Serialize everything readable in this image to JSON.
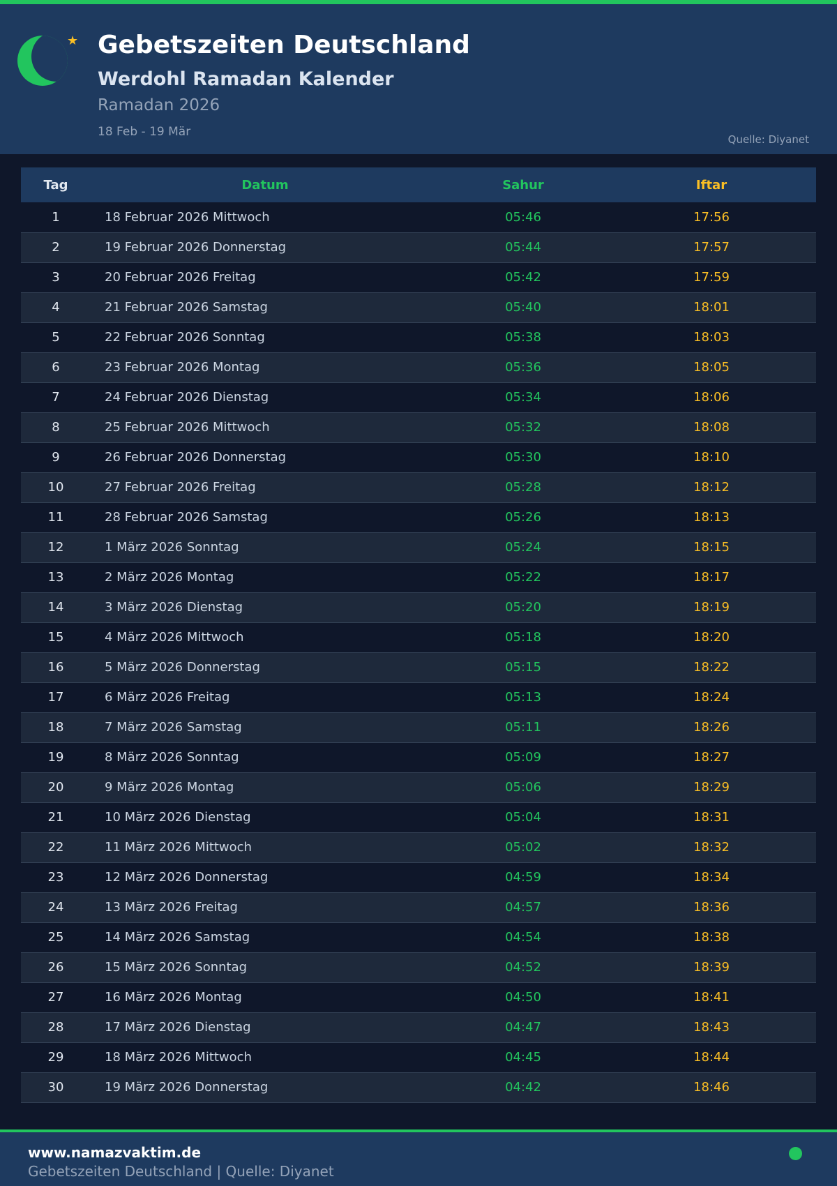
{
  "header": {
    "title": "Gebetszeiten Deutschland",
    "subtitle": "Werdohl Ramadan Kalender",
    "ramadan": "Ramadan 2026",
    "range": "18 Feb - 19 Mär",
    "source": "Quelle: Diyanet"
  },
  "colors": {
    "accent": "#22c55e",
    "iftar": "#fbbf24",
    "header_bg": "#1e3a5f",
    "page_bg": "#0f172a"
  },
  "table": {
    "columns": [
      "Tag",
      "Datum",
      "Sahur",
      "Iftar"
    ],
    "rows": [
      [
        "1",
        "18 Februar 2026 Mittwoch",
        "05:46",
        "17:56"
      ],
      [
        "2",
        "19 Februar 2026 Donnerstag",
        "05:44",
        "17:57"
      ],
      [
        "3",
        "20 Februar 2026 Freitag",
        "05:42",
        "17:59"
      ],
      [
        "4",
        "21 Februar 2026 Samstag",
        "05:40",
        "18:01"
      ],
      [
        "5",
        "22 Februar 2026 Sonntag",
        "05:38",
        "18:03"
      ],
      [
        "6",
        "23 Februar 2026 Montag",
        "05:36",
        "18:05"
      ],
      [
        "7",
        "24 Februar 2026 Dienstag",
        "05:34",
        "18:06"
      ],
      [
        "8",
        "25 Februar 2026 Mittwoch",
        "05:32",
        "18:08"
      ],
      [
        "9",
        "26 Februar 2026 Donnerstag",
        "05:30",
        "18:10"
      ],
      [
        "10",
        "27 Februar 2026 Freitag",
        "05:28",
        "18:12"
      ],
      [
        "11",
        "28 Februar 2026 Samstag",
        "05:26",
        "18:13"
      ],
      [
        "12",
        "1 März 2026 Sonntag",
        "05:24",
        "18:15"
      ],
      [
        "13",
        "2 März 2026 Montag",
        "05:22",
        "18:17"
      ],
      [
        "14",
        "3 März 2026 Dienstag",
        "05:20",
        "18:19"
      ],
      [
        "15",
        "4 März 2026 Mittwoch",
        "05:18",
        "18:20"
      ],
      [
        "16",
        "5 März 2026 Donnerstag",
        "05:15",
        "18:22"
      ],
      [
        "17",
        "6 März 2026 Freitag",
        "05:13",
        "18:24"
      ],
      [
        "18",
        "7 März 2026 Samstag",
        "05:11",
        "18:26"
      ],
      [
        "19",
        "8 März 2026 Sonntag",
        "05:09",
        "18:27"
      ],
      [
        "20",
        "9 März 2026 Montag",
        "05:06",
        "18:29"
      ],
      [
        "21",
        "10 März 2026 Dienstag",
        "05:04",
        "18:31"
      ],
      [
        "22",
        "11 März 2026 Mittwoch",
        "05:02",
        "18:32"
      ],
      [
        "23",
        "12 März 2026 Donnerstag",
        "04:59",
        "18:34"
      ],
      [
        "24",
        "13 März 2026 Freitag",
        "04:57",
        "18:36"
      ],
      [
        "25",
        "14 März 2026 Samstag",
        "04:54",
        "18:38"
      ],
      [
        "26",
        "15 März 2026 Sonntag",
        "04:52",
        "18:39"
      ],
      [
        "27",
        "16 März 2026 Montag",
        "04:50",
        "18:41"
      ],
      [
        "28",
        "17 März 2026 Dienstag",
        "04:47",
        "18:43"
      ],
      [
        "29",
        "18 März 2026 Mittwoch",
        "04:45",
        "18:44"
      ],
      [
        "30",
        "19 März 2026 Donnerstag",
        "04:42",
        "18:46"
      ]
    ]
  },
  "footer": {
    "website": "www.namazvaktim.de",
    "text": "Gebetszeiten Deutschland | Quelle: Diyanet"
  }
}
